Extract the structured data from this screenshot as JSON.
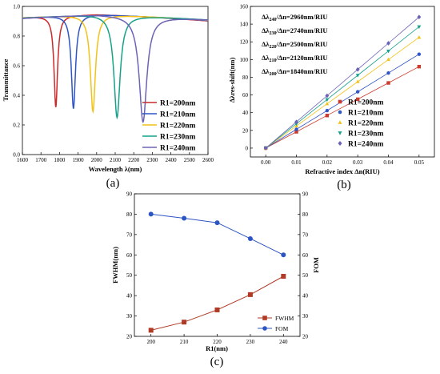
{
  "chart_data": [
    {
      "panel": "(a)",
      "type": "line",
      "ylabel": "Transmittance",
      "xlabel": "Wavelength λ(nm)",
      "xlim": [
        1600,
        2600
      ],
      "ylim": [
        0.0,
        1.0
      ],
      "xticks": [
        "1600",
        "1700",
        "1800",
        "1900",
        "2000",
        "2100",
        "2200",
        "2300",
        "2400",
        "2500",
        "2600"
      ],
      "yticks": [
        "0.0",
        "0.2",
        "0.4",
        "0.6",
        "0.8",
        "1.0"
      ],
      "legend_position": "lower-right",
      "grid": false,
      "series": [
        {
          "name": "R1=200nm",
          "color": "#cc2a2a",
          "dip_wavelength": 1780,
          "min_transmittance": 0.32,
          "fwhm": 23
        },
        {
          "name": "R1=210nm",
          "color": "#2f55c6",
          "dip_wavelength": 1875,
          "min_transmittance": 0.31,
          "fwhm": 27
        },
        {
          "name": "R1=220nm",
          "color": "#f2c21a",
          "dip_wavelength": 1980,
          "min_transmittance": 0.29,
          "fwhm": 33
        },
        {
          "name": "R1=230nm",
          "color": "#17a18a",
          "dip_wavelength": 2110,
          "min_transmittance": 0.25,
          "fwhm": 40.5
        },
        {
          "name": "R1=240nm",
          "color": "#6b63b5",
          "dip_wavelength": 2250,
          "min_transmittance": 0.22,
          "fwhm": 49.5
        }
      ]
    },
    {
      "panel": "(b)",
      "type": "scatter",
      "ylabel": "Δλres-shift(nm)",
      "xlabel": "Refractive index Δn(RIU)",
      "xlim": [
        -0.005,
        0.055
      ],
      "ylim": [
        -10,
        160
      ],
      "xticks": [
        "0.00",
        "0.01",
        "0.02",
        "0.03",
        "0.04",
        "0.05"
      ],
      "yticks": [
        "0",
        "20",
        "40",
        "60",
        "80",
        "100",
        "120",
        "140",
        "160"
      ],
      "legend_position": "lower-right",
      "annotations": [
        {
          "symbol": "Δλ",
          "sub": "240",
          "suffix": "/Δn=2960nm/RIU"
        },
        {
          "symbol": "Δλ",
          "sub": "230",
          "suffix": "/Δn=2740nm/RIU"
        },
        {
          "symbol": "Δλ",
          "sub": "220",
          "suffix": "/Δn=2500nm/RIU"
        },
        {
          "symbol": "Δλ",
          "sub": "210",
          "suffix": "/Δn=2120nm/RIU"
        },
        {
          "symbol": "Δλ",
          "sub": "200",
          "suffix": "/Δn=1840nm/RIU"
        }
      ],
      "x": [
        0.0,
        0.01,
        0.02,
        0.03,
        0.04,
        0.05
      ],
      "series": [
        {
          "name": "R1=200nm",
          "color": "#cc3b2c",
          "marker": "square",
          "values": [
            0,
            18.4,
            36.8,
            55.2,
            73.6,
            92
          ]
        },
        {
          "name": "R1=210nm",
          "color": "#2f55c6",
          "marker": "circle",
          "values": [
            0,
            21.2,
            42.4,
            63.6,
            84.8,
            106
          ]
        },
        {
          "name": "R1=220nm",
          "color": "#f2c21a",
          "marker": "triangle",
          "values": [
            0,
            25,
            50,
            75,
            100,
            125
          ]
        },
        {
          "name": "R1=230nm",
          "color": "#17a18a",
          "marker": "tri-down",
          "values": [
            0,
            27.4,
            54.8,
            82.2,
            109.6,
            137
          ]
        },
        {
          "name": "R1=240nm",
          "color": "#6b63b5",
          "marker": "diamond",
          "values": [
            0,
            29.6,
            59.2,
            88.8,
            118.4,
            148
          ]
        }
      ]
    },
    {
      "panel": "(c)",
      "type": "line",
      "xlabel": "R1(nm)",
      "ylabel": "FWHM(nm)",
      "ylabel_right": "FOM",
      "x": [
        200,
        210,
        220,
        230,
        240
      ],
      "xlim": [
        195,
        245
      ],
      "xticks": [
        "200",
        "210",
        "220",
        "230",
        "240"
      ],
      "ylim_left": [
        20,
        90
      ],
      "yticks_left": [
        "20",
        "30",
        "40",
        "50",
        "60",
        "70",
        "80",
        "90"
      ],
      "ylim_right": [
        20,
        90
      ],
      "yticks_right": [
        "20",
        "30",
        "40",
        "50",
        "60",
        "70",
        "80",
        "90"
      ],
      "legend_position": "lower-right",
      "series": [
        {
          "name": "FWHM",
          "color": "#b03a25",
          "marker": "square",
          "axis": "left",
          "values": [
            23,
            27,
            33,
            40.5,
            49.5
          ]
        },
        {
          "name": "FOM",
          "color": "#2c55c4",
          "marker": "circle",
          "axis": "right",
          "values": [
            80,
            78,
            75.8,
            68,
            60
          ]
        }
      ]
    }
  ]
}
